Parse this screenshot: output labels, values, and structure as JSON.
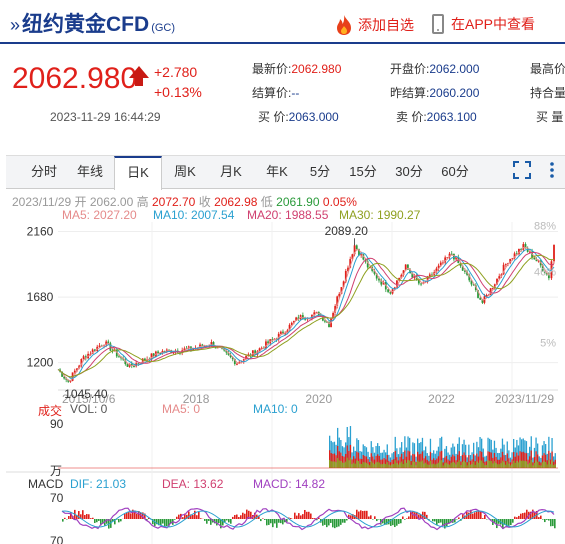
{
  "header": {
    "title": "纽约黄金CFD",
    "code": "(GC)",
    "favorite_label": "添加自选",
    "app_label": "在APP中查看"
  },
  "quote": {
    "price": "2062.980",
    "change": "+2.780",
    "change_pct": "+0.13%",
    "timestamp": "2023-11-29 16:44:29",
    "fields": {
      "latest_label": "最新价:",
      "latest": "2062.980",
      "open_label": "开盘价:",
      "open": "2062.000",
      "high_label": "最高价",
      "settle_label": "结算价:",
      "settle": "--",
      "prev_settle_label": "昨结算:",
      "prev_settle": "2060.200",
      "position_label": "持合量",
      "buy_label": "买  价:",
      "buy": "2063.000",
      "sell_label": "卖  价:",
      "sell": "2063.100",
      "buy_vol_label": "买  量"
    }
  },
  "tabs": [
    {
      "label": "分时"
    },
    {
      "label": "年线"
    },
    {
      "label": "日K"
    },
    {
      "label": "周K"
    },
    {
      "label": "月K"
    },
    {
      "label": "年K"
    },
    {
      "label": "5分"
    },
    {
      "label": "15分"
    },
    {
      "label": "30分"
    },
    {
      "label": "60分"
    }
  ],
  "info": {
    "date": "2023/11/29",
    "open_label": "开",
    "open": "2062.00",
    "high_label": "高",
    "high": "2072.70",
    "close_label": "收",
    "close": "2062.98",
    "low_label": "低",
    "low": "2061.90",
    "pct": "0.05%"
  },
  "ma": {
    "ma5": "MA5: 2027.20",
    "ma10": "MA10: 2007.54",
    "ma20": "MA20: 1988.55",
    "ma30": "MA30: 1990.27"
  },
  "volume": {
    "label": "成交",
    "vol": "VOL: 0",
    "ma5": "MA5: 0",
    "ma10": "MA10: 0",
    "ymax": "90",
    "unit": "万"
  },
  "macd": {
    "label": "MACD",
    "dif": "DIF: 21.03",
    "dea": "DEA: 13.62",
    "macd": "MACD: 14.82",
    "ymax": "70",
    "ymin": "70"
  },
  "colors": {
    "accent": "#1a3c8c",
    "up": "#e0201a",
    "down": "#2a9a3a",
    "ma5": "#e58a8a",
    "ma10": "#2aa0d0",
    "ma20": "#d04070",
    "ma30": "#8fa020"
  },
  "chart_data": {
    "type": "line",
    "yticks": [
      "2160",
      "1680",
      "1200"
    ],
    "pct_ticks": [
      "88%",
      "46%",
      "5%"
    ],
    "xticks": [
      "2015/10/6",
      "2018",
      "2020",
      "2022",
      "2023/11/29"
    ],
    "annotations": [
      "2089.20",
      "1045.40"
    ],
    "x": [
      "2015-10",
      "2015-12",
      "2016-03",
      "2016-07",
      "2016-12",
      "2017-06",
      "2017-12",
      "2018-04",
      "2018-09",
      "2019-01",
      "2019-06",
      "2019-09",
      "2020-01",
      "2020-03",
      "2020-05",
      "2020-08",
      "2020-11",
      "2021-03",
      "2021-06",
      "2021-09",
      "2022-03",
      "2022-06",
      "2022-09",
      "2022-11",
      "2023-02",
      "2023-05",
      "2023-08",
      "2023-10",
      "2023-11"
    ],
    "series": [
      {
        "values": [
          1150,
          1060,
          1240,
          1350,
          1170,
          1280,
          1300,
          1340,
          1200,
          1290,
          1420,
          1530,
          1560,
          1480,
          1720,
          2060,
          1880,
          1720,
          1900,
          1760,
          2000,
          1830,
          1640,
          1760,
          1950,
          2050,
          1930,
          1830,
          2063
        ]
      }
    ]
  }
}
